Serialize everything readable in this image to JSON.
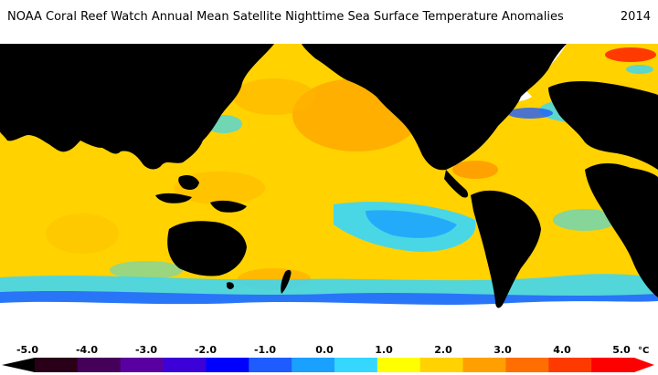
{
  "title": "NOAA Coral Reef Watch Annual Mean Satellite Nighttime Sea Surface Temperature Anomalies",
  "year": "2014",
  "legend": {
    "ticks": [
      "-5.0",
      "-4.0",
      "-3.0",
      "-2.0",
      "-1.0",
      "0.0",
      "1.0",
      "2.0",
      "3.0",
      "4.0",
      "5.0"
    ],
    "unit": "°C",
    "colors": [
      "#2a0018",
      "#45005a",
      "#5a00a0",
      "#3c00d8",
      "#0000ff",
      "#1f5cff",
      "#1aa0ff",
      "#35d7ff",
      "#ffff00",
      "#ffd200",
      "#ffa000",
      "#ff6e00",
      "#ff3a00",
      "#ff0000"
    ]
  },
  "map_colors": {
    "land": "#000000",
    "ice": "#ffffff",
    "ocean_base": "#ffd200",
    "warm": "#ffa000",
    "cool": "#35d7ff",
    "cold": "#1f5cff",
    "hot": "#ff3a00"
  }
}
